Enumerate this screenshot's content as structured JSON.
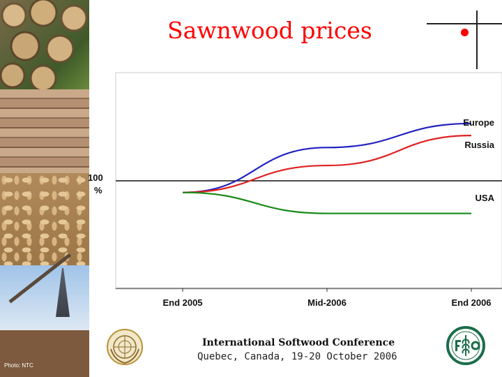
{
  "slide": {
    "title": "Sawnwood prices",
    "photo_credit": "Photo: NTC",
    "footer_title": "International Softwood Conference",
    "footer_place": "Quebec, Canada, 19-20 October 2006",
    "logos": [
      "un-emblem",
      "fao-emblem"
    ]
  },
  "chart_data": {
    "type": "line",
    "title": "",
    "xlabel": "",
    "ylabel": "",
    "baseline_label": [
      "100",
      "%"
    ],
    "categories": [
      "End 2005",
      "Mid-2006",
      "End 2006"
    ],
    "x": [
      0,
      0.5,
      1
    ],
    "series": [
      {
        "name": "Europe",
        "color": "#1f1fbf",
        "values": [
          100,
          107.5,
          111.5
        ]
      },
      {
        "name": "Russia",
        "color": "#e02020",
        "values": [
          100,
          104.5,
          109.5
        ]
      },
      {
        "name": "USA",
        "color": "#1a8a1a",
        "values": [
          100,
          96.5,
          96.5
        ]
      }
    ],
    "ylim": [
      84,
      120
    ],
    "grid": false,
    "legend": "right (labels at line ends)"
  }
}
